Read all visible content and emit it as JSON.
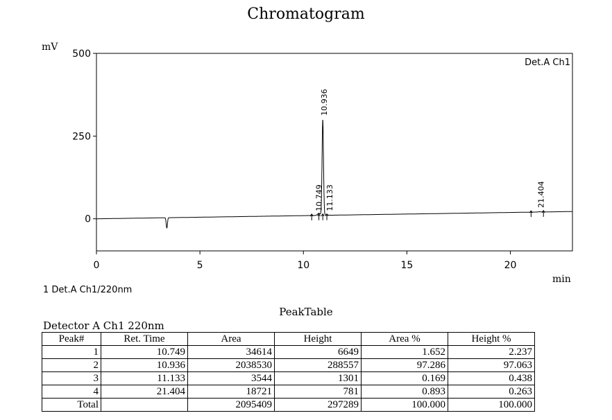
{
  "chart_data": {
    "type": "line",
    "title": "Chromatogram",
    "xlabel": "min",
    "ylabel": "mV",
    "xlim": [
      0,
      23
    ],
    "ylim": [
      -97,
      500
    ],
    "xticks": [
      0,
      5,
      10,
      15,
      20
    ],
    "yticks": [
      0,
      250,
      500
    ],
    "channel_label": "Det.A Ch1",
    "legend": "1  Det.A Ch1/220nm",
    "baseline": {
      "start_mV": 0,
      "end_mV": 22
    },
    "dips": [
      {
        "time": 3.4,
        "depth_mV": -31
      }
    ],
    "peaks": [
      {
        "label": "10.749",
        "time": 10.749,
        "height_mV": 6.6
      },
      {
        "label": "10.936",
        "time": 10.936,
        "height_mV": 288.6
      },
      {
        "label": "11.133",
        "time": 11.133,
        "height_mV": 1.3
      },
      {
        "label": "21.404",
        "time": 21.404,
        "height_mV": 0.8
      }
    ],
    "markers": [
      10.4,
      10.749,
      10.936,
      11.133,
      21.0,
      21.6
    ]
  },
  "peak_table": {
    "title": "PeakTable",
    "detector": "Detector A Ch1 220nm",
    "columns": [
      "Peak#",
      "Ret. Time",
      "Area",
      "Height",
      "Area %",
      "Height %"
    ],
    "rows": [
      [
        "1",
        "10.749",
        "34614",
        "6649",
        "1.652",
        "2.237"
      ],
      [
        "2",
        "10.936",
        "2038530",
        "288557",
        "97.286",
        "97.063"
      ],
      [
        "3",
        "11.133",
        "3544",
        "1301",
        "0.169",
        "0.438"
      ],
      [
        "4",
        "21.404",
        "18721",
        "781",
        "0.893",
        "0.263"
      ],
      [
        "Total",
        "",
        "2095409",
        "297289",
        "100.000",
        "100.000"
      ]
    ]
  }
}
